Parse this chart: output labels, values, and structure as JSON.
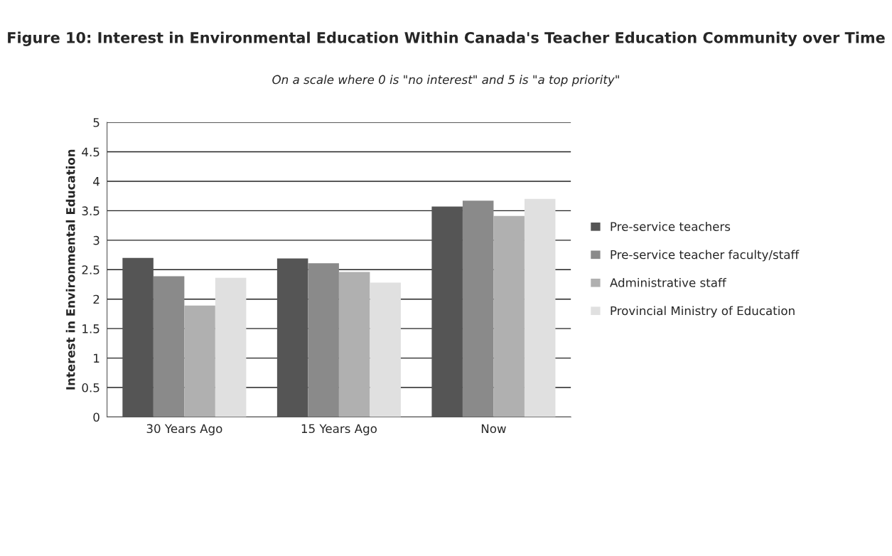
{
  "chart_data": {
    "type": "bar",
    "title": "Figure 10: Interest in Environmental Education Within Canada's Teacher Education Community over Time",
    "subtitle": "On a scale where 0 is \"no interest\" and 5 is \"a top priority\"",
    "ylabel": "Interest in Environmental Education",
    "categories": [
      "30 Years Ago",
      "15 Years Ago",
      "Now"
    ],
    "series": [
      {
        "name": "Pre-service teachers",
        "color": "#555555",
        "values": [
          2.7,
          2.69,
          3.57
        ]
      },
      {
        "name": "Pre-service teacher faculty/staff",
        "color": "#8a8a8a",
        "values": [
          2.39,
          2.61,
          3.67
        ]
      },
      {
        "name": "Administrative staff",
        "color": "#b0b0b0",
        "values": [
          1.89,
          2.46,
          3.41
        ]
      },
      {
        "name": "Provincial Ministry of Education",
        "color": "#e0e0e0",
        "values": [
          2.36,
          2.28,
          3.7
        ]
      }
    ],
    "ylim": [
      0,
      5
    ],
    "yticks": [
      0,
      0.5,
      1,
      1.5,
      2,
      2.5,
      3,
      3.5,
      4,
      4.5,
      5
    ],
    "grid": "y",
    "legend": "right"
  }
}
